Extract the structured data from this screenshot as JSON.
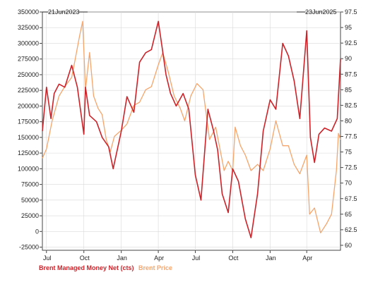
{
  "chart_data": {
    "type": "line",
    "start_date_label": "21Jun2023",
    "end_date_label": "23Jun2025",
    "x_tick_labels": [
      "Jul",
      "Oct",
      "Jan",
      "Apr",
      "Jul",
      "Oct",
      "Jan",
      "Apr"
    ],
    "y_left": {
      "ticks": [
        "350000",
        "325000",
        "300000",
        "275000",
        "250000",
        "225000",
        "200000",
        "175000",
        "150000",
        "125000",
        "100000",
        "75000",
        "50000",
        "25000",
        "0",
        "-25000"
      ],
      "ylim": [
        -30000,
        350000
      ]
    },
    "y_right": {
      "ticks": [
        "97.5",
        "95",
        "92.5",
        "90",
        "87.5",
        "85",
        "82.5",
        "80",
        "77.5",
        "75",
        "72.5",
        "70",
        "67.5",
        "65",
        "62.5",
        "60"
      ],
      "ylim": [
        59.2,
        97.5
      ]
    },
    "grid": true,
    "series": [
      {
        "name": "Brent Managed Money Net (cts)",
        "color": "#cc2229",
        "axis": "left",
        "x": [
          "2023-06-21",
          "2023-07-01",
          "2023-07-12",
          "2023-07-20",
          "2023-08-01",
          "2023-08-15",
          "2023-09-01",
          "2023-09-15",
          "2023-10-01",
          "2023-10-05",
          "2023-10-15",
          "2023-11-01",
          "2023-11-15",
          "2023-12-01",
          "2023-12-12",
          "2024-01-01",
          "2024-01-15",
          "2024-02-01",
          "2024-02-15",
          "2024-03-01",
          "2024-03-15",
          "2024-04-01",
          "2024-04-10",
          "2024-04-20",
          "2024-05-01",
          "2024-05-15",
          "2024-06-01",
          "2024-06-15",
          "2024-07-01",
          "2024-07-15",
          "2024-08-01",
          "2024-08-15",
          "2024-08-25",
          "2024-09-05",
          "2024-09-20",
          "2024-10-01",
          "2024-10-15",
          "2024-11-01",
          "2024-11-15",
          "2024-12-01",
          "2024-12-15",
          "2025-01-01",
          "2025-01-15",
          "2025-02-01",
          "2025-02-15",
          "2025-03-01",
          "2025-03-15",
          "2025-04-01",
          "2025-04-10",
          "2025-04-20",
          "2025-05-01",
          "2025-05-15",
          "2025-06-01",
          "2025-06-15",
          "2025-06-23"
        ],
        "values": [
          160000,
          230000,
          180000,
          220000,
          235000,
          230000,
          265000,
          230000,
          155000,
          230000,
          185000,
          175000,
          150000,
          135000,
          100000,
          160000,
          215000,
          190000,
          270000,
          285000,
          290000,
          335000,
          295000,
          250000,
          220000,
          200000,
          220000,
          195000,
          90000,
          50000,
          195000,
          160000,
          130000,
          60000,
          30000,
          100000,
          80000,
          20000,
          -10000,
          60000,
          160000,
          210000,
          195000,
          300000,
          280000,
          240000,
          180000,
          320000,
          150000,
          110000,
          155000,
          165000,
          160000,
          180000,
          275000
        ]
      },
      {
        "name": "Brent Price",
        "color": "#f5a56b",
        "axis": "right",
        "x": [
          "2023-06-21",
          "2023-07-01",
          "2023-07-15",
          "2023-08-01",
          "2023-08-15",
          "2023-09-01",
          "2023-09-10",
          "2023-09-20",
          "2023-09-28",
          "2023-10-05",
          "2023-10-15",
          "2023-10-25",
          "2023-11-05",
          "2023-11-15",
          "2023-11-25",
          "2023-12-05",
          "2023-12-15",
          "2024-01-01",
          "2024-01-15",
          "2024-02-01",
          "2024-02-15",
          "2024-03-01",
          "2024-03-15",
          "2024-04-01",
          "2024-04-12",
          "2024-04-25",
          "2024-05-10",
          "2024-05-25",
          "2024-06-05",
          "2024-06-20",
          "2024-07-05",
          "2024-07-20",
          "2024-08-05",
          "2024-08-20",
          "2024-09-01",
          "2024-09-10",
          "2024-09-20",
          "2024-10-01",
          "2024-10-07",
          "2024-10-20",
          "2024-11-01",
          "2024-11-15",
          "2024-12-01",
          "2024-12-15",
          "2025-01-01",
          "2025-01-15",
          "2025-02-01",
          "2025-02-15",
          "2025-03-01",
          "2025-03-15",
          "2025-04-01",
          "2025-04-08",
          "2025-04-20",
          "2025-05-05",
          "2025-05-20",
          "2025-06-01",
          "2025-06-13",
          "2025-06-18",
          "2025-06-23"
        ],
        "values": [
          74,
          75.5,
          80,
          84,
          85.5,
          87,
          90,
          93.5,
          96,
          85,
          91,
          84,
          82,
          81,
          77,
          75,
          77.5,
          78.5,
          79.5,
          82.5,
          83,
          85,
          85.5,
          89,
          91,
          88,
          84,
          82,
          80,
          84,
          86,
          85,
          77,
          79,
          75,
          72,
          73.5,
          72,
          79,
          76,
          74.5,
          72,
          73,
          72,
          75.5,
          80,
          76,
          76,
          73,
          71.5,
          74.5,
          65,
          66,
          62,
          63.5,
          65,
          72,
          78,
          77
        ]
      }
    ]
  }
}
